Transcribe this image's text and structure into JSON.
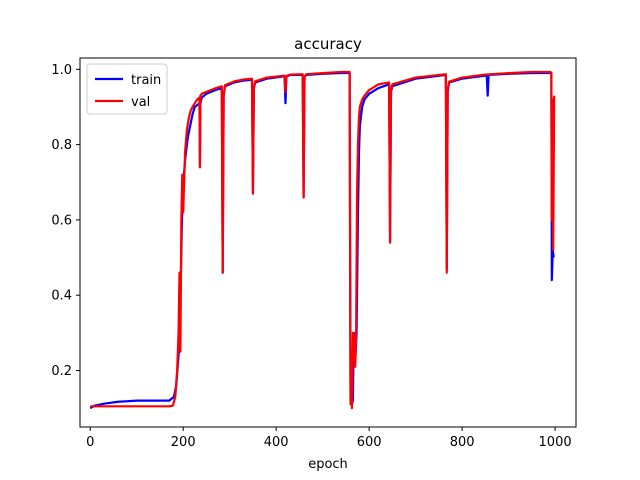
{
  "chart_data": {
    "type": "line",
    "title": "accuracy",
    "xlabel": "epoch",
    "ylabel": "",
    "xlim": [
      -22,
      1045
    ],
    "ylim": [
      0.05,
      1.03
    ],
    "xticks": [
      0,
      200,
      400,
      600,
      800,
      1000
    ],
    "yticks": [
      0.2,
      0.4,
      0.6,
      0.8,
      1.0
    ],
    "xtick_labels": [
      "0",
      "200",
      "400",
      "600",
      "800",
      "1000"
    ],
    "ytick_labels": [
      "0.2",
      "0.4",
      "0.6",
      "0.8",
      "1.0"
    ],
    "grid": false,
    "legend_position": "top-left",
    "series": [
      {
        "name": "train",
        "color": "#0000ff",
        "x": [
          0,
          10,
          30,
          60,
          100,
          140,
          170,
          180,
          185,
          190,
          193,
          195,
          197,
          200,
          205,
          210,
          215,
          220,
          225,
          230,
          235,
          236,
          237,
          240,
          250,
          270,
          283,
          285,
          287,
          290,
          310,
          330,
          348,
          350,
          352,
          355,
          380,
          410,
          418,
          420,
          422,
          430,
          457,
          459,
          461,
          465,
          500,
          540,
          558,
          560,
          562,
          563,
          565,
          567,
          570,
          573,
          576,
          578,
          580,
          585,
          590,
          600,
          620,
          643,
          645,
          647,
          650,
          700,
          765,
          767,
          769,
          772,
          800,
          850,
          853,
          855,
          857,
          900,
          950,
          985,
          990,
          992,
          993,
          995,
          997
        ],
        "values": [
          0.1,
          0.107,
          0.112,
          0.117,
          0.12,
          0.12,
          0.12,
          0.13,
          0.16,
          0.24,
          0.35,
          0.45,
          0.58,
          0.7,
          0.77,
          0.82,
          0.85,
          0.88,
          0.9,
          0.905,
          0.91,
          0.74,
          0.91,
          0.925,
          0.935,
          0.945,
          0.95,
          0.46,
          0.93,
          0.955,
          0.965,
          0.97,
          0.972,
          0.67,
          0.95,
          0.965,
          0.975,
          0.98,
          0.982,
          0.91,
          0.98,
          0.985,
          0.985,
          0.66,
          0.98,
          0.985,
          0.988,
          0.99,
          0.99,
          0.12,
          0.2,
          0.11,
          0.12,
          0.3,
          0.22,
          0.3,
          0.62,
          0.77,
          0.85,
          0.9,
          0.92,
          0.935,
          0.95,
          0.96,
          0.54,
          0.94,
          0.955,
          0.975,
          0.985,
          0.47,
          0.94,
          0.965,
          0.975,
          0.983,
          0.985,
          0.93,
          0.985,
          0.988,
          0.99,
          0.99,
          0.99,
          0.99,
          0.44,
          0.52,
          0.5
        ]
      },
      {
        "name": "val",
        "color": "#ff0000",
        "x": [
          0,
          10,
          30,
          60,
          100,
          140,
          170,
          178,
          183,
          187,
          190,
          192,
          194,
          196,
          198,
          200,
          204,
          208,
          212,
          216,
          220,
          225,
          230,
          235,
          236,
          237,
          240,
          250,
          270,
          283,
          285,
          287,
          290,
          310,
          330,
          348,
          350,
          352,
          355,
          380,
          410,
          418,
          420,
          422,
          430,
          457,
          459,
          461,
          465,
          500,
          540,
          558,
          560,
          562,
          563,
          565,
          567,
          570,
          572,
          574,
          576,
          578,
          580,
          585,
          590,
          600,
          620,
          643,
          645,
          647,
          650,
          700,
          765,
          767,
          769,
          772,
          800,
          850,
          900,
          950,
          985,
          990,
          992,
          993,
          994,
          996,
          998
        ],
        "values": [
          0.105,
          0.105,
          0.105,
          0.105,
          0.105,
          0.105,
          0.105,
          0.107,
          0.13,
          0.2,
          0.3,
          0.46,
          0.25,
          0.6,
          0.72,
          0.62,
          0.78,
          0.84,
          0.87,
          0.89,
          0.9,
          0.91,
          0.92,
          0.925,
          0.74,
          0.93,
          0.935,
          0.94,
          0.95,
          0.955,
          0.46,
          0.93,
          0.958,
          0.968,
          0.973,
          0.975,
          0.67,
          0.95,
          0.968,
          0.978,
          0.982,
          0.983,
          0.94,
          0.982,
          0.986,
          0.987,
          0.66,
          0.98,
          0.987,
          0.99,
          0.993,
          0.993,
          0.11,
          0.25,
          0.1,
          0.3,
          0.29,
          0.21,
          0.3,
          0.67,
          0.8,
          0.87,
          0.9,
          0.92,
          0.93,
          0.945,
          0.96,
          0.965,
          0.54,
          0.945,
          0.96,
          0.978,
          0.987,
          0.46,
          0.945,
          0.967,
          0.978,
          0.986,
          0.99,
          0.993,
          0.993,
          0.993,
          0.99,
          0.6,
          0.92,
          0.52,
          0.93
        ]
      }
    ]
  }
}
